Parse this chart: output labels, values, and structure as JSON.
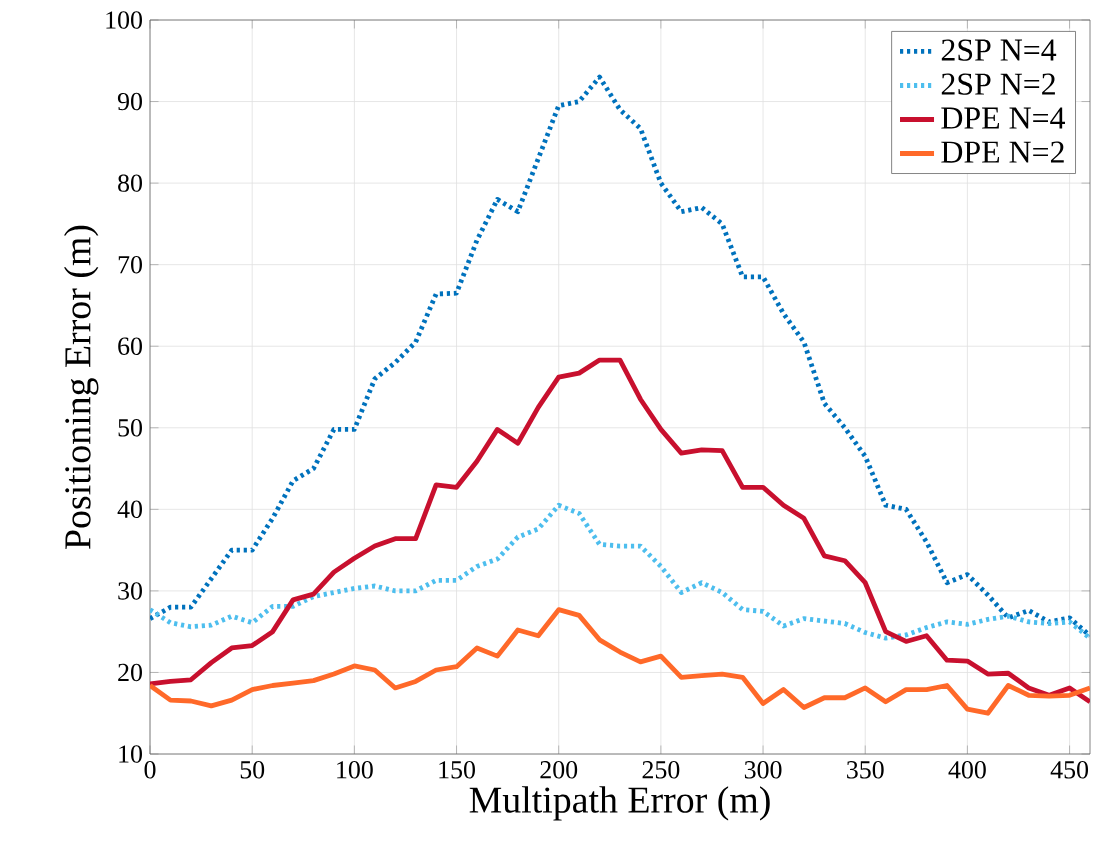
{
  "chart_data": {
    "type": "line",
    "xlabel": "Multipath Error (m)",
    "ylabel": "Positioning Error (m)",
    "x": [
      0,
      10,
      20,
      30,
      40,
      50,
      60,
      70,
      80,
      90,
      100,
      110,
      120,
      130,
      140,
      150,
      160,
      170,
      180,
      190,
      200,
      210,
      220,
      230,
      240,
      250,
      260,
      270,
      280,
      290,
      300,
      310,
      320,
      330,
      340,
      350,
      360,
      370,
      380,
      390,
      400,
      410,
      420,
      430,
      440,
      450,
      460
    ],
    "xlim": [
      0,
      460
    ],
    "xticks": [
      0,
      50,
      100,
      150,
      200,
      250,
      300,
      350,
      400,
      450
    ],
    "ylim": [
      10,
      100
    ],
    "yticks": [
      10,
      20,
      30,
      40,
      50,
      60,
      70,
      80,
      90,
      100
    ],
    "grid": true,
    "legend": "top right",
    "marker": "none",
    "series": [
      {
        "name": "2SP N=4",
        "color": "#0072bd",
        "line_style": "dotted",
        "values": [
          26.6,
          28,
          28,
          31.5,
          35,
          35,
          38.9,
          43.5,
          45,
          49.8,
          49.8,
          56,
          58,
          60.5,
          66.4,
          66.5,
          73,
          78,
          76.5,
          83,
          89.5,
          90,
          93,
          89,
          86.7,
          80,
          76.5,
          77,
          75,
          68.5,
          68.5,
          64,
          60.5,
          53,
          50,
          46.5,
          40.5,
          40,
          36,
          31,
          32,
          29.5,
          26.7,
          27.6,
          26.2,
          26.7,
          24.5
        ]
      },
      {
        "name": "2SP N=2",
        "color": "#4dbeee",
        "line_style": "dotted",
        "values": [
          27.7,
          26.1,
          25.6,
          25.8,
          26.9,
          26.1,
          28.1,
          28.1,
          29.3,
          29.8,
          30.3,
          30.6,
          30,
          30,
          31.3,
          31.3,
          33,
          33.9,
          36.6,
          37.6,
          40.5,
          39.5,
          35.7,
          35.5,
          35.5,
          33,
          29.8,
          31,
          29.8,
          27.7,
          27.5,
          25.7,
          26.6,
          26.3,
          26,
          24.9,
          24.2,
          24.6,
          25.5,
          26.2,
          25.9,
          26.5,
          26.9,
          26.2,
          26,
          26.2,
          24.2
        ]
      },
      {
        "name": "DPE N=4",
        "color": "#c8102e",
        "line_style": "solid",
        "values": [
          18.6,
          18.9,
          19.1,
          21.2,
          23,
          23.3,
          25,
          28.9,
          29.6,
          32.3,
          34,
          35.5,
          36.4,
          36.4,
          43,
          42.7,
          45.9,
          49.8,
          48.1,
          52.5,
          56.2,
          56.7,
          58.3,
          58.3,
          53.5,
          49.8,
          46.9,
          47.3,
          47.2,
          42.7,
          42.7,
          40.5,
          38.9,
          34.3,
          33.7,
          31,
          25,
          23.8,
          24.5,
          21.5,
          21.4,
          19.8,
          19.9,
          18.1,
          17.2,
          18.1,
          16.4
        ]
      },
      {
        "name": "DPE N=2",
        "color": "#ff6929",
        "line_style": "solid",
        "values": [
          18.4,
          16.6,
          16.5,
          15.9,
          16.6,
          17.9,
          18.4,
          18.7,
          19,
          19.8,
          20.8,
          20.3,
          18.1,
          18.9,
          20.3,
          20.7,
          23,
          22,
          25.2,
          24.5,
          27.7,
          27,
          24,
          22.5,
          21.3,
          22,
          19.4,
          19.6,
          19.8,
          19.4,
          16.2,
          17.9,
          15.7,
          16.9,
          16.9,
          18.1,
          16.4,
          17.9,
          17.9,
          18.4,
          15.5,
          15,
          18.4,
          17.2,
          17.1,
          17.2,
          18.1
        ]
      }
    ]
  }
}
